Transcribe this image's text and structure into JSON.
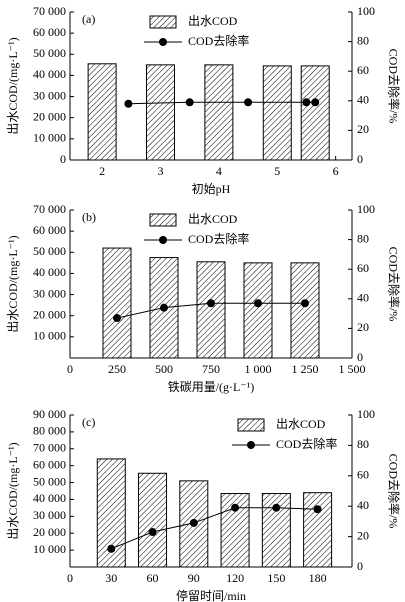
{
  "chart_data": [
    {
      "type": "bar_line",
      "panel_label": "(a)",
      "xlabel": "初始pH",
      "ylabel": "出水COD/(mg·L⁻¹)",
      "y2label": "COD去除率/%",
      "legend": "top-center",
      "xlim": [
        1.45,
        6.28
      ],
      "xticks": [
        2,
        3,
        4,
        5,
        6
      ],
      "ylim": [
        0,
        70000
      ],
      "yticks": [
        0,
        {
          "value": 10000,
          "label": "10 000"
        },
        {
          "value": 20000,
          "label": "20 000"
        },
        {
          "value": 30000,
          "label": "30 000"
        },
        {
          "value": 40000,
          "label": "40 000"
        },
        {
          "value": 50000,
          "label": "50 000"
        },
        {
          "value": 60000,
          "label": "60 000"
        },
        {
          "value": 70000,
          "label": "70 000"
        }
      ],
      "y2lim": [
        0,
        100
      ],
      "y2ticks": [
        0,
        20,
        40,
        60,
        80,
        100
      ],
      "series": [
        {
          "name": "出水COD",
          "type": "bar",
          "color": "#000000",
          "x": [
            2,
            3,
            4,
            5,
            5.65
          ],
          "values": [
            45500,
            45000,
            45000,
            44500,
            44500
          ]
        },
        {
          "name": "COD去除率",
          "type": "line",
          "axis": "y2",
          "color": "#000000",
          "x": [
            2.45,
            3.5,
            4.5,
            5.5,
            5.65
          ],
          "values": [
            38,
            39,
            39,
            39,
            39
          ]
        }
      ]
    },
    {
      "type": "bar_line",
      "panel_label": "(b)",
      "xlabel": "铁碳用量/(g·L⁻¹)",
      "ylabel": "出水COD/(mg·L⁻¹)",
      "y2label": "COD去除率/%",
      "legend": "top-center",
      "xlim": [
        0,
        1500
      ],
      "xticks": [
        0,
        250,
        500,
        750,
        {
          "value": 1000,
          "label": "1 000"
        },
        {
          "value": 1250,
          "label": "1 250"
        },
        {
          "value": 1500,
          "label": "1 500"
        }
      ],
      "ylim": [
        0,
        70000
      ],
      "yticks": [
        {
          "value": 10000,
          "label": "10 000"
        },
        {
          "value": 20000,
          "label": "20 000"
        },
        {
          "value": 30000,
          "label": "30 000"
        },
        {
          "value": 40000,
          "label": "40 000"
        },
        {
          "value": 50000,
          "label": "50 000"
        },
        {
          "value": 60000,
          "label": "60 000"
        },
        {
          "value": 70000,
          "label": "70 000"
        }
      ],
      "y2lim": [
        0,
        100
      ],
      "y2ticks": [
        0,
        20,
        40,
        60,
        80,
        100
      ],
      "series": [
        {
          "name": "出水COD",
          "type": "bar",
          "color": "#000000",
          "x": [
            250,
            500,
            750,
            1000,
            1250
          ],
          "values": [
            52000,
            47500,
            45500,
            45000,
            45000
          ]
        },
        {
          "name": "COD去除率",
          "type": "line",
          "axis": "y2",
          "color": "#000000",
          "x": [
            250,
            500,
            750,
            1000,
            1250
          ],
          "values": [
            27,
            34,
            37,
            37,
            37
          ]
        }
      ]
    },
    {
      "type": "bar_line",
      "panel_label": "(c)",
      "xlabel": "停留时间/min",
      "ylabel": "出水COD/(mg·L⁻¹)",
      "y2label": "COD去除率/%",
      "legend": "top-right",
      "xlim": [
        0,
        205
      ],
      "xticks": [
        0,
        30,
        60,
        90,
        120,
        150,
        180
      ],
      "ylim": [
        0,
        90000
      ],
      "yticks": [
        {
          "value": 10000,
          "label": "10 000"
        },
        {
          "value": 20000,
          "label": "20 000"
        },
        {
          "value": 30000,
          "label": "30 000"
        },
        {
          "value": 40000,
          "label": "40 000"
        },
        {
          "value": 50000,
          "label": "50 000"
        },
        {
          "value": 60000,
          "label": "60 000"
        },
        {
          "value": 70000,
          "label": "70 000"
        },
        {
          "value": 80000,
          "label": "80 000"
        },
        {
          "value": 90000,
          "label": "90 000"
        }
      ],
      "y2lim": [
        0,
        100
      ],
      "y2ticks": [
        0,
        20,
        40,
        60,
        80,
        100
      ],
      "series": [
        {
          "name": "出水COD",
          "type": "bar",
          "color": "#000000",
          "x": [
            30,
            60,
            90,
            120,
            150,
            180
          ],
          "values": [
            64000,
            55500,
            51000,
            43500,
            43500,
            44000
          ]
        },
        {
          "name": "COD去除率",
          "type": "line",
          "axis": "y2",
          "color": "#000000",
          "x": [
            30,
            60,
            90,
            120,
            150,
            180
          ],
          "values": [
            12,
            23,
            29,
            39,
            39,
            38
          ]
        }
      ]
    }
  ]
}
